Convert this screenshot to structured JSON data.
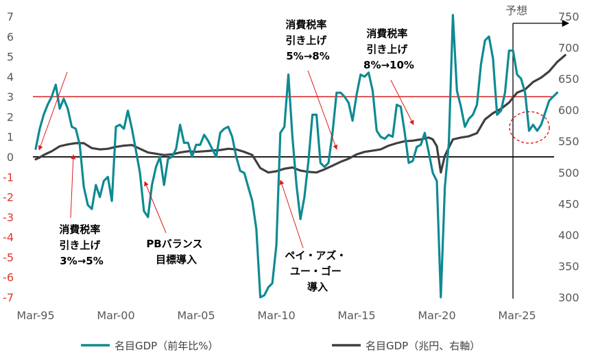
{
  "chart_data": {
    "type": "line",
    "xlabel": "",
    "x_ticks": [
      "Mar-95",
      "Mar-00",
      "Mar-05",
      "Mar-10",
      "Mar-15",
      "Mar-20",
      "Mar-25"
    ],
    "y_left": {
      "ticks": [
        7,
        6,
        5,
        4,
        3,
        2,
        1,
        0,
        -1,
        -2,
        -3,
        -4,
        -5,
        -6,
        -7
      ],
      "ylim": [
        -7,
        7
      ]
    },
    "y_right": {
      "ticks": [
        750,
        700,
        650,
        600,
        550,
        500,
        450,
        400,
        350,
        300
      ],
      "ylim": [
        300,
        750
      ]
    },
    "reference_lines": [
      {
        "axis": "left",
        "value": 3,
        "color": "#d62020"
      },
      {
        "axis": "left",
        "value": 0,
        "color": "#000000"
      }
    ],
    "forecast_label": "予想",
    "forecast_start": "Mar-25",
    "series": [
      {
        "name": "名目GDP（前年比%）",
        "axis": "left",
        "color": "#0e8a92",
        "points": [
          [
            1995.0,
            0.4
          ],
          [
            1995.25,
            1.4
          ],
          [
            1995.5,
            2.1
          ],
          [
            1995.75,
            2.6
          ],
          [
            1996.0,
            3.0
          ],
          [
            1996.25,
            3.6
          ],
          [
            1996.5,
            2.4
          ],
          [
            1996.75,
            2.9
          ],
          [
            1997.0,
            2.4
          ],
          [
            1997.25,
            1.5
          ],
          [
            1997.5,
            1.4
          ],
          [
            1997.75,
            0.6
          ],
          [
            1998.0,
            -1.5
          ],
          [
            1998.25,
            -2.4
          ],
          [
            1998.5,
            -2.6
          ],
          [
            1998.75,
            -1.4
          ],
          [
            1999.0,
            -2.0
          ],
          [
            1999.25,
            -1.2
          ],
          [
            1999.5,
            -1.0
          ],
          [
            1999.75,
            -2.2
          ],
          [
            2000.0,
            1.5
          ],
          [
            2000.25,
            1.6
          ],
          [
            2000.5,
            1.4
          ],
          [
            2000.75,
            2.3
          ],
          [
            2001.0,
            1.4
          ],
          [
            2001.25,
            0.3
          ],
          [
            2001.5,
            -0.8
          ],
          [
            2001.75,
            -2.7
          ],
          [
            2002.0,
            -3.0
          ],
          [
            2002.25,
            -1.4
          ],
          [
            2002.5,
            -0.5
          ],
          [
            2002.75,
            0.0
          ],
          [
            2003.0,
            -1.4
          ],
          [
            2003.25,
            -0.1
          ],
          [
            2003.5,
            0.0
          ],
          [
            2003.75,
            0.4
          ],
          [
            2004.0,
            1.6
          ],
          [
            2004.25,
            0.7
          ],
          [
            2004.5,
            0.7
          ],
          [
            2004.75,
            0.0
          ],
          [
            2005.0,
            0.6
          ],
          [
            2005.25,
            0.6
          ],
          [
            2005.5,
            1.1
          ],
          [
            2005.75,
            0.8
          ],
          [
            2006.0,
            0.4
          ],
          [
            2006.25,
            0.0
          ],
          [
            2006.5,
            1.2
          ],
          [
            2006.75,
            1.4
          ],
          [
            2007.0,
            1.5
          ],
          [
            2007.25,
            1.0
          ],
          [
            2007.5,
            0.0
          ],
          [
            2007.75,
            -0.7
          ],
          [
            2008.0,
            -0.8
          ],
          [
            2008.25,
            -1.5
          ],
          [
            2008.5,
            -2.2
          ],
          [
            2008.75,
            -3.6
          ],
          [
            2009.0,
            -7.0
          ],
          [
            2009.25,
            -6.9
          ],
          [
            2009.5,
            -6.5
          ],
          [
            2009.75,
            -6.3
          ],
          [
            2010.0,
            -4.4
          ],
          [
            2010.25,
            1.2
          ],
          [
            2010.5,
            1.5
          ],
          [
            2010.75,
            4.1
          ],
          [
            2011.0,
            1.0
          ],
          [
            2011.25,
            -1.4
          ],
          [
            2011.5,
            -3.1
          ],
          [
            2011.75,
            -2.0
          ],
          [
            2012.0,
            -0.2
          ],
          [
            2012.25,
            2.1
          ],
          [
            2012.5,
            2.1
          ],
          [
            2012.75,
            -0.3
          ],
          [
            2013.0,
            -0.5
          ],
          [
            2013.25,
            -0.3
          ],
          [
            2013.5,
            1.2
          ],
          [
            2013.75,
            3.2
          ],
          [
            2014.0,
            3.2
          ],
          [
            2014.25,
            3.0
          ],
          [
            2014.5,
            2.7
          ],
          [
            2014.75,
            1.8
          ],
          [
            2015.0,
            3.1
          ],
          [
            2015.25,
            4.1
          ],
          [
            2015.5,
            4.0
          ],
          [
            2015.75,
            4.2
          ],
          [
            2016.0,
            3.3
          ],
          [
            2016.25,
            1.3
          ],
          [
            2016.5,
            1.0
          ],
          [
            2016.75,
            0.9
          ],
          [
            2017.0,
            1.1
          ],
          [
            2017.25,
            1.0
          ],
          [
            2017.5,
            2.6
          ],
          [
            2017.75,
            2.5
          ],
          [
            2018.0,
            1.2
          ],
          [
            2018.25,
            -0.3
          ],
          [
            2018.5,
            -0.2
          ],
          [
            2018.75,
            0.5
          ],
          [
            2019.0,
            0.6
          ],
          [
            2019.25,
            1.2
          ],
          [
            2019.5,
            0.2
          ],
          [
            2019.75,
            -0.8
          ],
          [
            2020.0,
            -1.2
          ],
          [
            2020.25,
            -7.0
          ],
          [
            2020.5,
            -1.5
          ],
          [
            2020.75,
            0.7
          ],
          [
            2021.0,
            8.2
          ],
          [
            2021.25,
            3.3
          ],
          [
            2021.5,
            2.5
          ],
          [
            2021.75,
            1.5
          ],
          [
            2022.0,
            1.9
          ],
          [
            2022.25,
            2.1
          ],
          [
            2022.5,
            2.6
          ],
          [
            2022.75,
            4.6
          ],
          [
            2023.0,
            5.8
          ],
          [
            2023.25,
            6.0
          ],
          [
            2023.5,
            4.9
          ],
          [
            2023.75,
            2.1
          ],
          [
            2024.0,
            2.3
          ],
          [
            2024.25,
            3.2
          ],
          [
            2024.5,
            5.3
          ],
          [
            2024.75,
            5.3
          ],
          [
            2025.0,
            4.1
          ],
          [
            2025.25,
            3.9
          ],
          [
            2025.5,
            3.2
          ],
          [
            2025.75,
            1.3
          ],
          [
            2026.0,
            1.6
          ],
          [
            2026.25,
            1.3
          ],
          [
            2026.5,
            1.6
          ],
          [
            2026.75,
            2.2
          ],
          [
            2027.0,
            2.8
          ],
          [
            2027.25,
            3.0
          ],
          [
            2027.5,
            3.2
          ]
        ]
      },
      {
        "name": "名目GDP（兆円、右軸）",
        "axis": "right",
        "color": "#3f3f3f",
        "points": [
          [
            1995.0,
            521
          ],
          [
            1995.25,
            524
          ],
          [
            1995.5,
            528
          ],
          [
            1995.75,
            531
          ],
          [
            1996.0,
            534
          ],
          [
            1996.5,
            542
          ],
          [
            1997.0,
            545
          ],
          [
            1997.5,
            547
          ],
          [
            1998.0,
            547
          ],
          [
            1998.5,
            539
          ],
          [
            1999.0,
            537
          ],
          [
            1999.5,
            538
          ],
          [
            2000.0,
            541
          ],
          [
            2000.5,
            543
          ],
          [
            2001.0,
            544
          ],
          [
            2001.5,
            538
          ],
          [
            2002.0,
            532
          ],
          [
            2002.5,
            530
          ],
          [
            2003.0,
            528
          ],
          [
            2003.5,
            529
          ],
          [
            2004.0,
            532
          ],
          [
            2004.5,
            534
          ],
          [
            2005.0,
            533
          ],
          [
            2005.5,
            534
          ],
          [
            2006.0,
            535
          ],
          [
            2006.5,
            536
          ],
          [
            2007.0,
            538
          ],
          [
            2007.5,
            537
          ],
          [
            2008.0,
            533
          ],
          [
            2008.5,
            528
          ],
          [
            2009.0,
            507
          ],
          [
            2009.5,
            500
          ],
          [
            2010.0,
            502
          ],
          [
            2010.5,
            506
          ],
          [
            2011.0,
            508
          ],
          [
            2011.5,
            503
          ],
          [
            2012.0,
            501
          ],
          [
            2012.5,
            500
          ],
          [
            2013.0,
            505
          ],
          [
            2013.5,
            511
          ],
          [
            2014.0,
            517
          ],
          [
            2014.5,
            522
          ],
          [
            2015.0,
            529
          ],
          [
            2015.5,
            533
          ],
          [
            2016.0,
            535
          ],
          [
            2016.5,
            537
          ],
          [
            2017.0,
            543
          ],
          [
            2017.5,
            547
          ],
          [
            2018.0,
            550
          ],
          [
            2018.5,
            551
          ],
          [
            2019.0,
            553
          ],
          [
            2019.5,
            556
          ],
          [
            2019.75,
            553
          ],
          [
            2020.0,
            542
          ],
          [
            2020.25,
            500
          ],
          [
            2020.5,
            527
          ],
          [
            2021.0,
            553
          ],
          [
            2021.5,
            556
          ],
          [
            2022.0,
            558
          ],
          [
            2022.5,
            563
          ],
          [
            2023.0,
            585
          ],
          [
            2023.5,
            595
          ],
          [
            2024.0,
            602
          ],
          [
            2024.5,
            612
          ],
          [
            2025.0,
            628
          ],
          [
            2025.5,
            633
          ],
          [
            2026.0,
            645
          ],
          [
            2026.5,
            652
          ],
          [
            2027.0,
            662
          ],
          [
            2027.5,
            677
          ],
          [
            2028.0,
            688
          ]
        ]
      }
    ],
    "annotations": [
      {
        "lines": [
          "消費税率",
          "引き上げ",
          "3%→5%"
        ]
      },
      {
        "lines": [
          "PBバランス",
          "目標導入"
        ]
      },
      {
        "lines": [
          "ペイ・アズ・",
          "ユー・ゴー",
          "導入"
        ]
      },
      {
        "lines": [
          "消費税率",
          "引き上げ",
          "5%→8%"
        ]
      },
      {
        "lines": [
          "消費税率",
          "引き上げ",
          "8%→10%"
        ]
      }
    ],
    "legend": {
      "position": "bottom"
    },
    "grid": false
  }
}
